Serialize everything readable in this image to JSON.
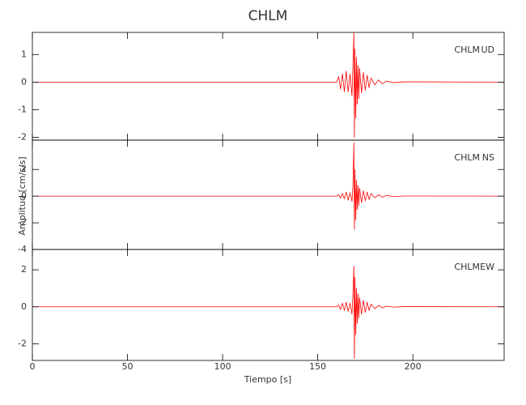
{
  "title": "CHLM",
  "y_label": "Amplitud [cm/s/s]",
  "x_axis": {
    "label": "Tiempo [s]",
    "xlim": [
      0,
      248
    ],
    "xticks": [
      0,
      50,
      100,
      150,
      200
    ]
  },
  "chart_data": [
    {
      "type": "line",
      "station": "CHLM",
      "component": "UD",
      "ylim": [
        -2.1,
        1.8
      ],
      "yticks": [
        1,
        0,
        -1,
        -2
      ],
      "x": [
        0,
        160,
        161,
        162,
        163,
        164,
        165,
        166,
        167,
        168,
        168.5,
        169,
        169.3,
        169.6,
        170,
        170.4,
        170.8,
        171.2,
        171.6,
        172,
        173,
        174,
        175,
        176,
        177,
        178,
        180,
        182,
        184,
        186,
        190,
        195,
        248
      ],
      "series": [
        {
          "color": "#ff0000",
          "values": [
            0,
            0,
            0.2,
            -0.25,
            0.3,
            -0.35,
            0.4,
            -0.35,
            0.3,
            -0.5,
            0.6,
            1.8,
            -2.0,
            1.2,
            -1.3,
            0.9,
            -0.8,
            0.6,
            -0.6,
            0.5,
            -0.4,
            0.35,
            -0.3,
            0.25,
            -0.2,
            0.15,
            -0.1,
            0.08,
            -0.06,
            0.04,
            -0.02,
            0.01,
            0
          ]
        }
      ]
    },
    {
      "type": "line",
      "station": "CHLM",
      "component": "NS",
      "ylim": [
        -4,
        4.2
      ],
      "yticks": [
        2,
        0,
        -2,
        -4
      ],
      "x": [
        0,
        160,
        161,
        162,
        163,
        164,
        165,
        166,
        167,
        168,
        168.5,
        169,
        169.3,
        169.6,
        170,
        170.4,
        170.8,
        171.2,
        171.6,
        172,
        173,
        174,
        175,
        176,
        177,
        178,
        180,
        182,
        184,
        186,
        190,
        195,
        248
      ],
      "series": [
        {
          "color": "#ff0000",
          "values": [
            0,
            0,
            0.1,
            -0.15,
            0.2,
            -0.2,
            0.3,
            -0.3,
            0.25,
            -0.4,
            0.8,
            4.0,
            -2.5,
            2.0,
            -1.8,
            1.2,
            -1.0,
            0.8,
            -0.7,
            0.6,
            -0.5,
            0.4,
            -0.35,
            0.3,
            -0.25,
            0.2,
            -0.12,
            0.1,
            -0.08,
            0.05,
            -0.03,
            0.01,
            0
          ]
        }
      ]
    },
    {
      "type": "line",
      "station": "CHLM",
      "component": "EW",
      "ylim": [
        -2.9,
        3.1
      ],
      "yticks": [
        2,
        0,
        -2
      ],
      "x": [
        0,
        160,
        161,
        162,
        163,
        164,
        165,
        166,
        167,
        168,
        168.5,
        169,
        169.3,
        169.6,
        170,
        170.4,
        170.8,
        171.2,
        171.6,
        172,
        173,
        174,
        175,
        176,
        177,
        178,
        180,
        182,
        184,
        186,
        190,
        195,
        248
      ],
      "series": [
        {
          "color": "#ff0000",
          "values": [
            0,
            0,
            0.1,
            -0.15,
            0.2,
            -0.2,
            0.25,
            -0.25,
            0.2,
            -0.4,
            0.7,
            2.2,
            -2.8,
            1.6,
            -1.5,
            1.0,
            -0.9,
            0.7,
            -0.6,
            0.5,
            -0.4,
            0.35,
            -0.3,
            0.25,
            -0.2,
            0.15,
            -0.1,
            0.08,
            -0.06,
            0.04,
            -0.02,
            0.01,
            0
          ]
        }
      ]
    }
  ]
}
